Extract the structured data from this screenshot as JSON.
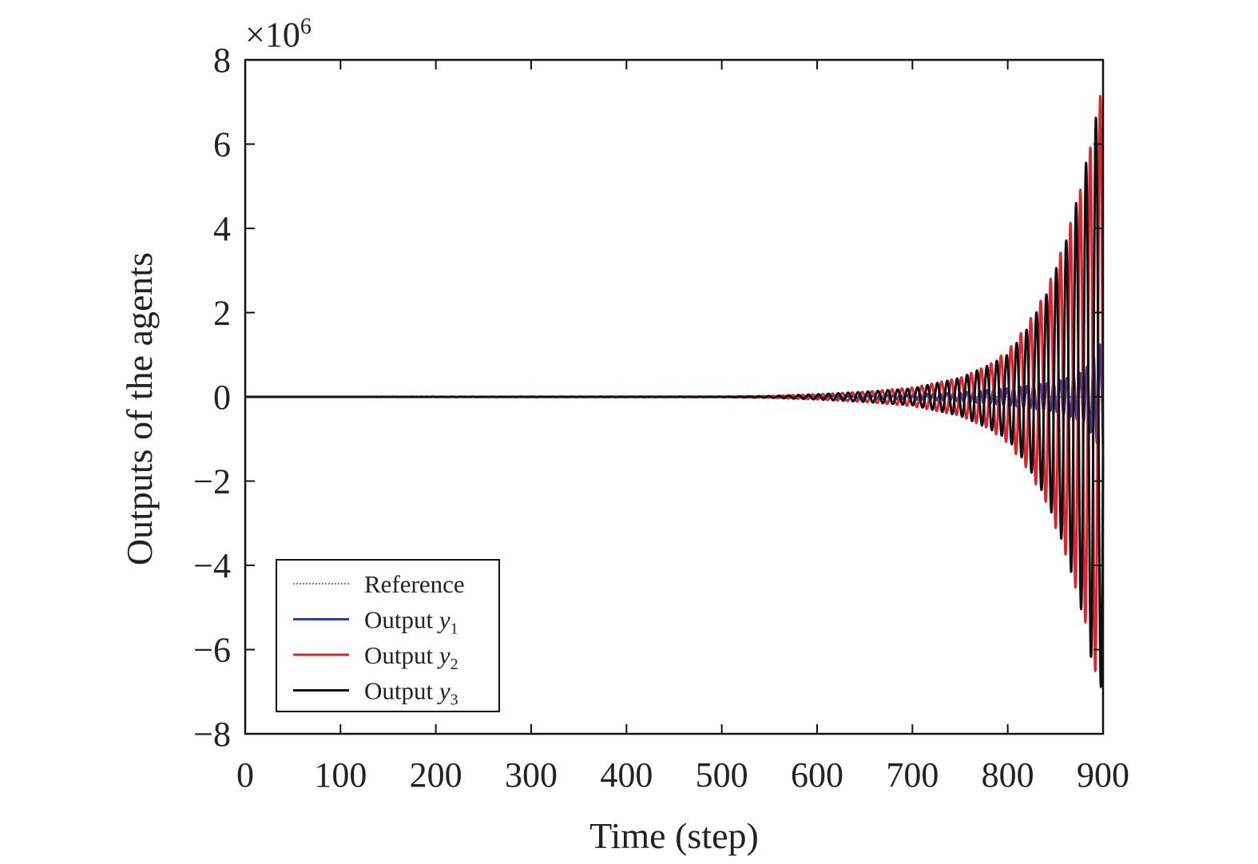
{
  "chart_data": {
    "type": "line",
    "title": "",
    "xlabel": "Time (step)",
    "ylabel": "Outputs of the agents",
    "xlim": [
      0,
      900
    ],
    "ylim": [
      -8,
      8
    ],
    "y_multiplier_label": "×10",
    "y_multiplier_exponent": "6",
    "xticks": [
      0,
      100,
      200,
      300,
      400,
      500,
      600,
      700,
      800,
      900
    ],
    "yticks": [
      -8,
      -6,
      -4,
      -2,
      0,
      2,
      4,
      6,
      8
    ],
    "ytick_labels": [
      "−8",
      "−6",
      "−4",
      "−2",
      "0",
      "2",
      "4",
      "6",
      "8"
    ],
    "grid": false,
    "legend_position": "bottom-left",
    "series": [
      {
        "name": "Reference",
        "name_prefix": "Reference",
        "name_var": "",
        "name_sub": "",
        "color": "#555555",
        "style": "dotted",
        "envelope": [
          [
            0,
            0
          ],
          [
            900,
            0.002
          ]
        ],
        "period": 10,
        "phase": 0.0
      },
      {
        "name": "Output y1",
        "name_prefix": "Output ",
        "name_var": "y",
        "name_sub": "1",
        "color": "#2b3f9e",
        "style": "solid",
        "envelope": [
          [
            0,
            0
          ],
          [
            500,
            0.004
          ],
          [
            600,
            0.02
          ],
          [
            700,
            0.06
          ],
          [
            750,
            0.1
          ],
          [
            800,
            0.2
          ],
          [
            850,
            0.35
          ],
          [
            880,
            0.6
          ],
          [
            900,
            1.35
          ]
        ],
        "period": 7,
        "phase": 0.6
      },
      {
        "name": "Output y2",
        "name_prefix": "Output ",
        "name_var": "y",
        "name_sub": "2",
        "color": "#e0242f",
        "style": "solid",
        "envelope": [
          [
            0,
            0
          ],
          [
            500,
            0.005
          ],
          [
            550,
            0.02
          ],
          [
            600,
            0.06
          ],
          [
            650,
            0.12
          ],
          [
            700,
            0.22
          ],
          [
            750,
            0.45
          ],
          [
            780,
            0.75
          ],
          [
            800,
            1.1
          ],
          [
            820,
            1.7
          ],
          [
            840,
            2.5
          ],
          [
            860,
            3.7
          ],
          [
            880,
            5.2
          ],
          [
            890,
            6.3
          ],
          [
            900,
            7.5
          ]
        ],
        "period": 10.4,
        "phase": 0.0
      },
      {
        "name": "Output y3",
        "name_prefix": "Output ",
        "name_var": "y",
        "name_sub": "3",
        "color": "#111111",
        "style": "solid",
        "envelope": [
          [
            0,
            0
          ],
          [
            500,
            0.005
          ],
          [
            550,
            0.02
          ],
          [
            600,
            0.06
          ],
          [
            650,
            0.12
          ],
          [
            700,
            0.2
          ],
          [
            750,
            0.45
          ],
          [
            780,
            0.75
          ],
          [
            800,
            1.0
          ],
          [
            820,
            1.6
          ],
          [
            840,
            2.4
          ],
          [
            860,
            3.6
          ],
          [
            880,
            5.3
          ],
          [
            890,
            6.5
          ],
          [
            900,
            7.0
          ]
        ],
        "period": 10.4,
        "phase": 2.7
      }
    ]
  }
}
